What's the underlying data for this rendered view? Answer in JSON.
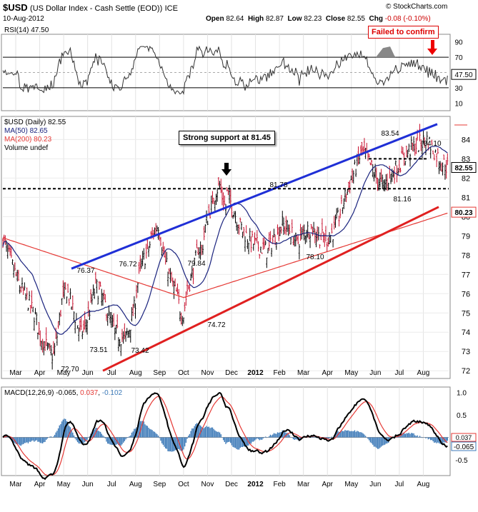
{
  "header": {
    "symbol": "$USD",
    "name": "(US Dollar Index - Cash Settle (EOD))",
    "exchange": "ICE",
    "watermark": "© StockCharts.com",
    "date": "10-Aug-2012",
    "open_label": "Open",
    "open": "82.64",
    "high_label": "High",
    "high": "82.87",
    "low_label": "Low",
    "low": "82.23",
    "close_label": "Close",
    "close": "82.55",
    "chg_label": "Chg",
    "chg": "-0.08 (-0.10%)"
  },
  "rsi_panel": {
    "label": "RSI(14)",
    "value": "47.50",
    "callout": "Failed to confirm",
    "levels": [
      70,
      30
    ],
    "ticks": [
      "90",
      "70",
      "50",
      "30",
      "10"
    ]
  },
  "price_panel": {
    "label": "$USD (Daily)",
    "value": "82.55",
    "ma50_label": "MA(50)",
    "ma50_value": "82.65",
    "ma200_label": "MA(200)",
    "ma200_value": "80.23",
    "volume_label": "Volume undef",
    "callout": "Strong support at 81.45",
    "support_level": 81.45,
    "last_price_tag": "82.55",
    "ma200_tag": "80.23",
    "annotations": [
      "72.70",
      "73.51",
      "73.42",
      "76.37",
      "76.72",
      "79.84",
      "74.72",
      "81.78",
      "78.10",
      "83.54",
      "81.16",
      "84.10"
    ],
    "y_ticks": [
      "84",
      "83",
      "82",
      "81",
      "80",
      "79",
      "78",
      "77",
      "76",
      "75",
      "74",
      "73",
      "72"
    ]
  },
  "macd_panel": {
    "label": "MACD(12,26,9)",
    "macd": "-0.065",
    "signal": "0.037",
    "hist": "-0.102",
    "y_ticks": [
      "1.0",
      "0.5",
      "-0.5"
    ],
    "tag_signal": "0.037",
    "tag_macd": "-0.065"
  },
  "x_axis": [
    "Mar",
    "Apr",
    "May",
    "Jun",
    "Jul",
    "Aug",
    "Sep",
    "Oct",
    "Nov",
    "Dec",
    "2012",
    "Feb",
    "Mar",
    "Apr",
    "May",
    "Jun",
    "Jul",
    "Aug"
  ],
  "colors": {
    "up_bar": "#000000",
    "down_bar": "#c8102e",
    "ma50": "#1a237e",
    "ma200": "#e53935",
    "trend_upper": "#1f2fd6",
    "trend_lower": "#e02020",
    "macd_line": "#000000",
    "signal_line": "#e53935",
    "histogram": "#3d7ab8"
  },
  "chart_data": [
    {
      "type": "line",
      "name": "RSI(14)",
      "ylim": [
        0,
        100
      ],
      "x": [
        "2011-03",
        "2011-04",
        "2011-05",
        "2011-06",
        "2011-07",
        "2011-08",
        "2011-09",
        "2011-10",
        "2011-11",
        "2011-12",
        "2012-01",
        "2012-02",
        "2012-03",
        "2012-04",
        "2012-05",
        "2012-06",
        "2012-07",
        "2012-08"
      ],
      "values": [
        45,
        40,
        42,
        55,
        48,
        46,
        62,
        58,
        50,
        60,
        58,
        45,
        48,
        46,
        60,
        72,
        62,
        47.5
      ]
    },
    {
      "type": "line",
      "name": "$USD (Daily)",
      "ylim": [
        72,
        85
      ],
      "x": [
        "2011-03-01",
        "2011-04-01",
        "2011-05-01",
        "2011-06-01",
        "2011-07-01",
        "2011-08-01",
        "2011-09-01",
        "2011-10-01",
        "2011-11-01",
        "2011-12-01",
        "2012-01-01",
        "2012-02-01",
        "2012-03-01",
        "2012-04-01",
        "2012-05-01",
        "2012-06-01",
        "2012-07-01",
        "2012-08-10"
      ],
      "series": [
        {
          "name": "$USD",
          "values": [
            78.5,
            76.0,
            73.0,
            74.5,
            75.5,
            74.0,
            76.5,
            78.0,
            77.5,
            79.5,
            80.8,
            79.0,
            79.5,
            79.0,
            81.0,
            82.3,
            83.0,
            82.55
          ]
        },
        {
          "name": "MA(50)",
          "values": [
            78.0,
            76.5,
            75.0,
            74.8,
            74.5,
            74.6,
            75.0,
            76.5,
            77.3,
            78.5,
            79.8,
            79.8,
            79.5,
            79.4,
            79.8,
            81.5,
            82.3,
            82.65
          ]
        },
        {
          "name": "MA(200)",
          "values": [
            79.5,
            78.2,
            77.0,
            76.2,
            75.8,
            75.4,
            75.5,
            76.0,
            76.5,
            77.0,
            77.5,
            78.0,
            78.2,
            78.5,
            78.8,
            79.3,
            79.8,
            80.23
          ]
        }
      ]
    },
    {
      "type": "line",
      "name": "MACD(12,26,9)",
      "ylim": [
        -0.8,
        1.1
      ],
      "x": [
        "2011-03",
        "2011-04",
        "2011-05",
        "2011-06",
        "2011-07",
        "2011-08",
        "2011-09",
        "2011-10",
        "2011-11",
        "2011-12",
        "2012-01",
        "2012-02",
        "2012-03",
        "2012-04",
        "2012-05",
        "2012-06",
        "2012-07",
        "2012-08"
      ],
      "series": [
        {
          "name": "MACD",
          "values": [
            0.1,
            -0.3,
            -0.5,
            0.2,
            0.1,
            -0.2,
            0.5,
            0.9,
            0.2,
            0.4,
            0.6,
            -0.2,
            0.1,
            -0.2,
            0.3,
            0.8,
            0.3,
            -0.065
          ]
        },
        {
          "name": "Signal",
          "values": [
            0.0,
            -0.2,
            -0.4,
            0.0,
            0.1,
            -0.1,
            0.2,
            0.7,
            0.4,
            0.3,
            0.5,
            0.1,
            0.0,
            -0.1,
            0.1,
            0.6,
            0.4,
            0.037
          ]
        },
        {
          "name": "Histogram",
          "values": [
            0.1,
            -0.1,
            -0.1,
            0.2,
            0.0,
            -0.1,
            0.3,
            0.2,
            -0.2,
            0.1,
            0.1,
            -0.3,
            0.1,
            -0.1,
            0.2,
            0.2,
            -0.1,
            -0.102
          ]
        }
      ]
    }
  ]
}
